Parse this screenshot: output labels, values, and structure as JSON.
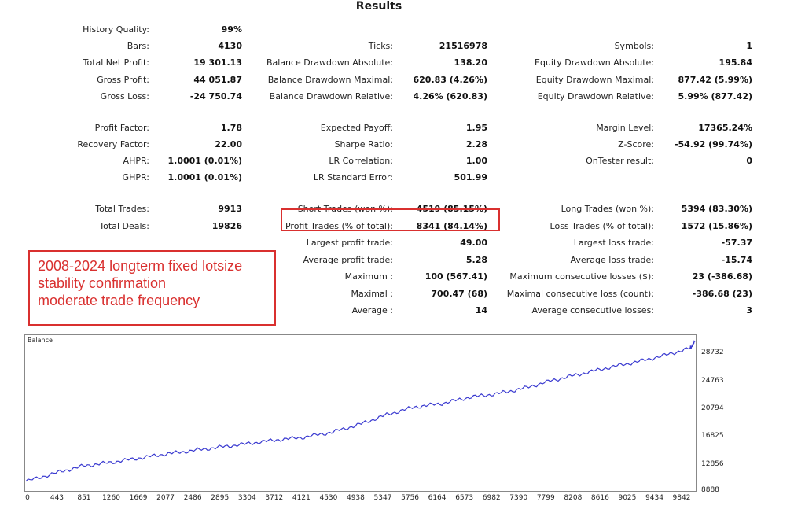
{
  "title": "Results",
  "col1": [
    {
      "label": "History Quality:",
      "value": "99%"
    },
    {
      "label": "Bars:",
      "value": "4130"
    },
    {
      "label": "Total Net Profit:",
      "value": "19 301.13"
    },
    {
      "label": "Gross Profit:",
      "value": "44 051.87"
    },
    {
      "label": "Gross Loss:",
      "value": "-24 750.74"
    },
    {
      "label": "Profit Factor:",
      "value": "1.78"
    },
    {
      "label": "Recovery Factor:",
      "value": "22.00"
    },
    {
      "label": "AHPR:",
      "value": "1.0001 (0.01%)"
    },
    {
      "label": "GHPR:",
      "value": "1.0001 (0.01%)"
    },
    {
      "label": "Total Trades:",
      "value": "9913"
    },
    {
      "label": "Total Deals:",
      "value": "19826"
    }
  ],
  "col2": [
    {
      "label": "Ticks:",
      "value": "21516978"
    },
    {
      "label": "Balance Drawdown Absolute:",
      "value": "138.20"
    },
    {
      "label": "Balance Drawdown Maximal:",
      "value": "620.83 (4.26%)"
    },
    {
      "label": "Balance Drawdown Relative:",
      "value": "4.26% (620.83)"
    },
    {
      "label": "Expected Payoff:",
      "value": "1.95"
    },
    {
      "label": "Sharpe Ratio:",
      "value": "2.28"
    },
    {
      "label": "LR Correlation:",
      "value": "1.00"
    },
    {
      "label": "LR Standard Error:",
      "value": "501.99"
    },
    {
      "label": "Short Trades (won %):",
      "value": "4519 (85.15%)"
    },
    {
      "label": "Profit Trades (% of total):",
      "value": "8341 (84.14%)"
    },
    {
      "label": "Largest profit trade:",
      "value": "49.00"
    },
    {
      "label": "Average profit trade:",
      "value": "5.28"
    },
    {
      "label": "Maximum :",
      "value": "100 (567.41)"
    },
    {
      "label": "Maximal :",
      "value": "700.47 (68)"
    },
    {
      "label": "Average :",
      "value": "14"
    }
  ],
  "col3": [
    {
      "label": "Symbols:",
      "value": "1"
    },
    {
      "label": "Equity Drawdown Absolute:",
      "value": "195.84"
    },
    {
      "label": "Equity Drawdown Maximal:",
      "value": "877.42 (5.99%)"
    },
    {
      "label": "Equity Drawdown Relative:",
      "value": "5.99% (877.42)"
    },
    {
      "label": "Margin Level:",
      "value": "17365.24%"
    },
    {
      "label": "Z-Score:",
      "value": "-54.92 (99.74%)"
    },
    {
      "label": "OnTester result:",
      "value": "0"
    },
    {
      "label": "Long Trades (won %):",
      "value": "5394 (83.30%)"
    },
    {
      "label": "Loss Trades (% of total):",
      "value": "1572 (15.86%)"
    },
    {
      "label": "Largest loss trade:",
      "value": "-57.37"
    },
    {
      "label": "Average loss trade:",
      "value": "-15.74"
    },
    {
      "label": "Maximum consecutive losses ($):",
      "value": "23 (-386.68)"
    },
    {
      "label": "Maximal consecutive loss (count):",
      "value": "-386.68 (23)"
    },
    {
      "label": "Average consecutive losses:",
      "value": "3"
    }
  ],
  "note": {
    "lines": [
      "2008-2024 longterm fixed lotsize",
      "stability confirmation",
      "moderate trade frequency"
    ],
    "color": "#d9302f"
  },
  "chart_data": {
    "type": "line",
    "title": "Balance",
    "xlabel": "",
    "ylabel": "",
    "x_ticks": [
      "0",
      "443",
      "851",
      "1260",
      "1669",
      "2077",
      "2486",
      "2895",
      "3304",
      "3712",
      "4121",
      "4530",
      "4938",
      "5347",
      "5756",
      "6164",
      "6573",
      "6982",
      "7390",
      "7799",
      "8208",
      "8616",
      "9025",
      "9434",
      "9842"
    ],
    "y_ticks": [
      "28732",
      "24763",
      "20794",
      "16825",
      "12856",
      "8888"
    ],
    "xlim": [
      0,
      9913
    ],
    "ylim": [
      8888,
      30000
    ],
    "series": [
      {
        "color": "#3a3ad0",
        "x": [
          0,
          443,
          851,
          1260,
          1669,
          2077,
          2486,
          2895,
          3304,
          3712,
          4121,
          4530,
          4938,
          5347,
          5756,
          6164,
          6573,
          6982,
          7390,
          7799,
          8208,
          8616,
          9025,
          9434,
          9842,
          9913
        ],
        "y": [
          9700,
          10900,
          11900,
          12400,
          13000,
          13600,
          14100,
          14600,
          15100,
          15600,
          16000,
          16700,
          17800,
          19200,
          20300,
          20800,
          21700,
          22200,
          23000,
          24100,
          25000,
          25900,
          26700,
          27600,
          28700,
          29600
        ]
      }
    ]
  }
}
